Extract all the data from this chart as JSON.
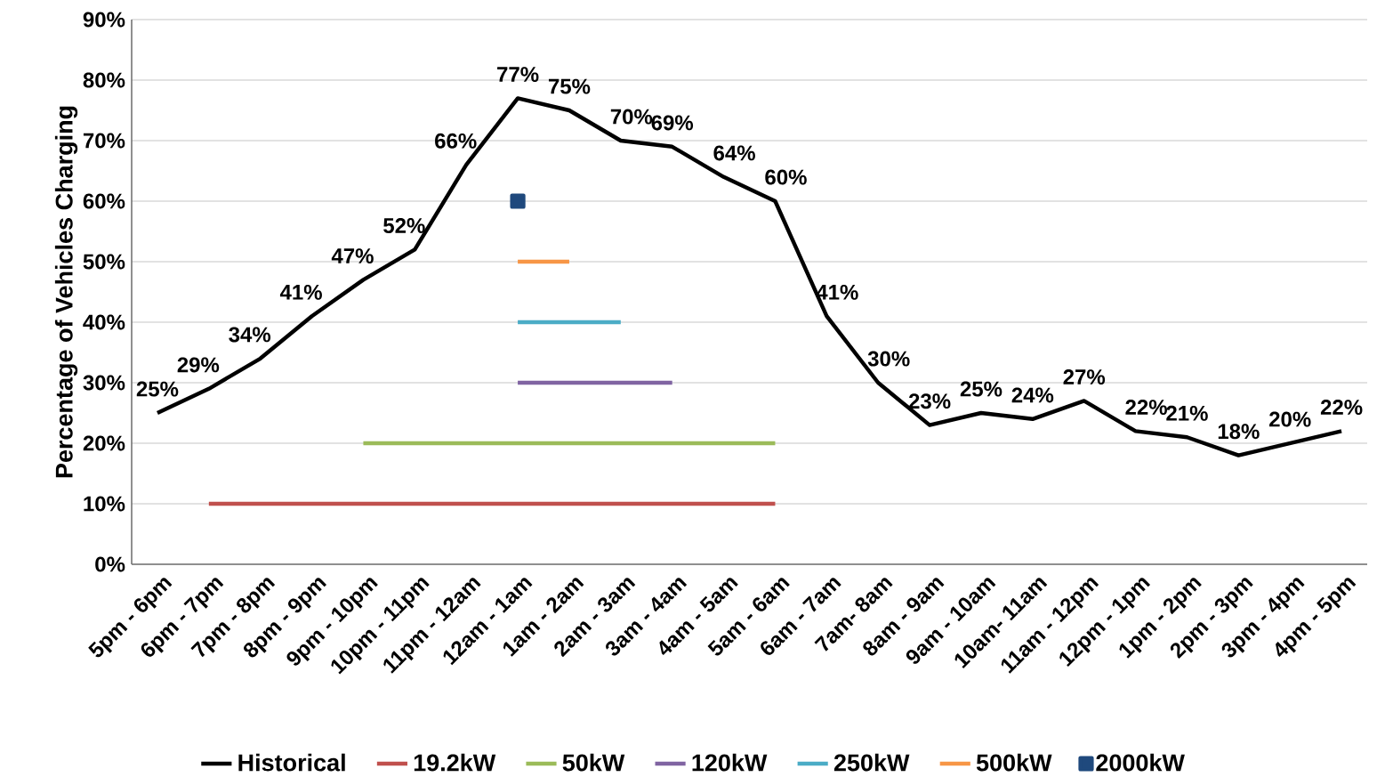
{
  "chart_data": {
    "type": "line",
    "ylabel": "Percentage of Vehicles Charging",
    "categories": [
      "5pm - 6pm",
      "6pm - 7pm",
      "7pm - 8pm",
      "8pm - 9pm",
      "9pm - 10pm",
      "10pm - 11pm",
      "11pm - 12am",
      "12am - 1am",
      "1am - 2am",
      "2am - 3am",
      "3am - 4am",
      "4am - 5am",
      "5am - 6am",
      "6am - 7am",
      "7am- 8am",
      "8am - 9am",
      "9am - 10am",
      "10am- 11am",
      "11am - 12pm",
      "12pm - 1pm",
      "1pm - 2pm",
      "2pm - 3pm",
      "3pm - 4pm",
      "4pm - 5pm"
    ],
    "series": [
      {
        "name": "Historical",
        "color": "#000000",
        "values": [
          25,
          29,
          34,
          41,
          47,
          52,
          66,
          77,
          75,
          70,
          69,
          64,
          60,
          41,
          30,
          23,
          25,
          24,
          27,
          22,
          21,
          18,
          20,
          22
        ],
        "value_labels": [
          "25%",
          "29%",
          "34%",
          "41%",
          "47%",
          "52%",
          "66%",
          "77%",
          "75%",
          "70%",
          "69%",
          "64%",
          "60%",
          "41%",
          "30%",
          "23%",
          "25%",
          "24%",
          "27%",
          "22%",
          "21%",
          "18%",
          "20%",
          "22%"
        ]
      },
      {
        "name": "19.2kW",
        "color": "#c0504d",
        "values": [
          null,
          10,
          10,
          10,
          10,
          10,
          10,
          10,
          10,
          10,
          10,
          10,
          10,
          null,
          null,
          null,
          null,
          null,
          null,
          null,
          null,
          null,
          null,
          null
        ]
      },
      {
        "name": "50kW",
        "color": "#9bbb59",
        "values": [
          null,
          null,
          null,
          null,
          20,
          20,
          20,
          20,
          20,
          20,
          20,
          20,
          20,
          null,
          null,
          null,
          null,
          null,
          null,
          null,
          null,
          null,
          null,
          null
        ]
      },
      {
        "name": "120kW",
        "color": "#8064a2",
        "values": [
          null,
          null,
          null,
          null,
          null,
          null,
          null,
          30,
          30,
          30,
          30,
          null,
          null,
          null,
          null,
          null,
          null,
          null,
          null,
          null,
          null,
          null,
          null,
          null
        ]
      },
      {
        "name": "250kW",
        "color": "#4bacc6",
        "values": [
          null,
          null,
          null,
          null,
          null,
          null,
          null,
          40,
          40,
          40,
          null,
          null,
          null,
          null,
          null,
          null,
          null,
          null,
          null,
          null,
          null,
          null,
          null,
          null
        ]
      },
      {
        "name": "500kW",
        "color": "#f79646",
        "values": [
          null,
          null,
          null,
          null,
          null,
          null,
          null,
          50,
          50,
          null,
          null,
          null,
          null,
          null,
          null,
          null,
          null,
          null,
          null,
          null,
          null,
          null,
          null,
          null
        ]
      },
      {
        "name": "2000kW",
        "color": "#1f497d",
        "marker": "square",
        "values": [
          null,
          null,
          null,
          null,
          null,
          null,
          null,
          60,
          null,
          null,
          null,
          null,
          null,
          null,
          null,
          null,
          null,
          null,
          null,
          null,
          null,
          null,
          null,
          null
        ]
      }
    ],
    "ylim": [
      0,
      90
    ],
    "yticks": [
      {
        "value": 0,
        "label": "0%"
      },
      {
        "value": 10,
        "label": "10%"
      },
      {
        "value": 20,
        "label": "20%"
      },
      {
        "value": 30,
        "label": "30%"
      },
      {
        "value": 40,
        "label": "40%"
      },
      {
        "value": 50,
        "label": "50%"
      },
      {
        "value": 60,
        "label": "60%"
      },
      {
        "value": 70,
        "label": "70%"
      },
      {
        "value": 80,
        "label": "80%"
      },
      {
        "value": 90,
        "label": "90%"
      }
    ],
    "grid": "y",
    "legend": "bottom",
    "line_style": "solid"
  }
}
